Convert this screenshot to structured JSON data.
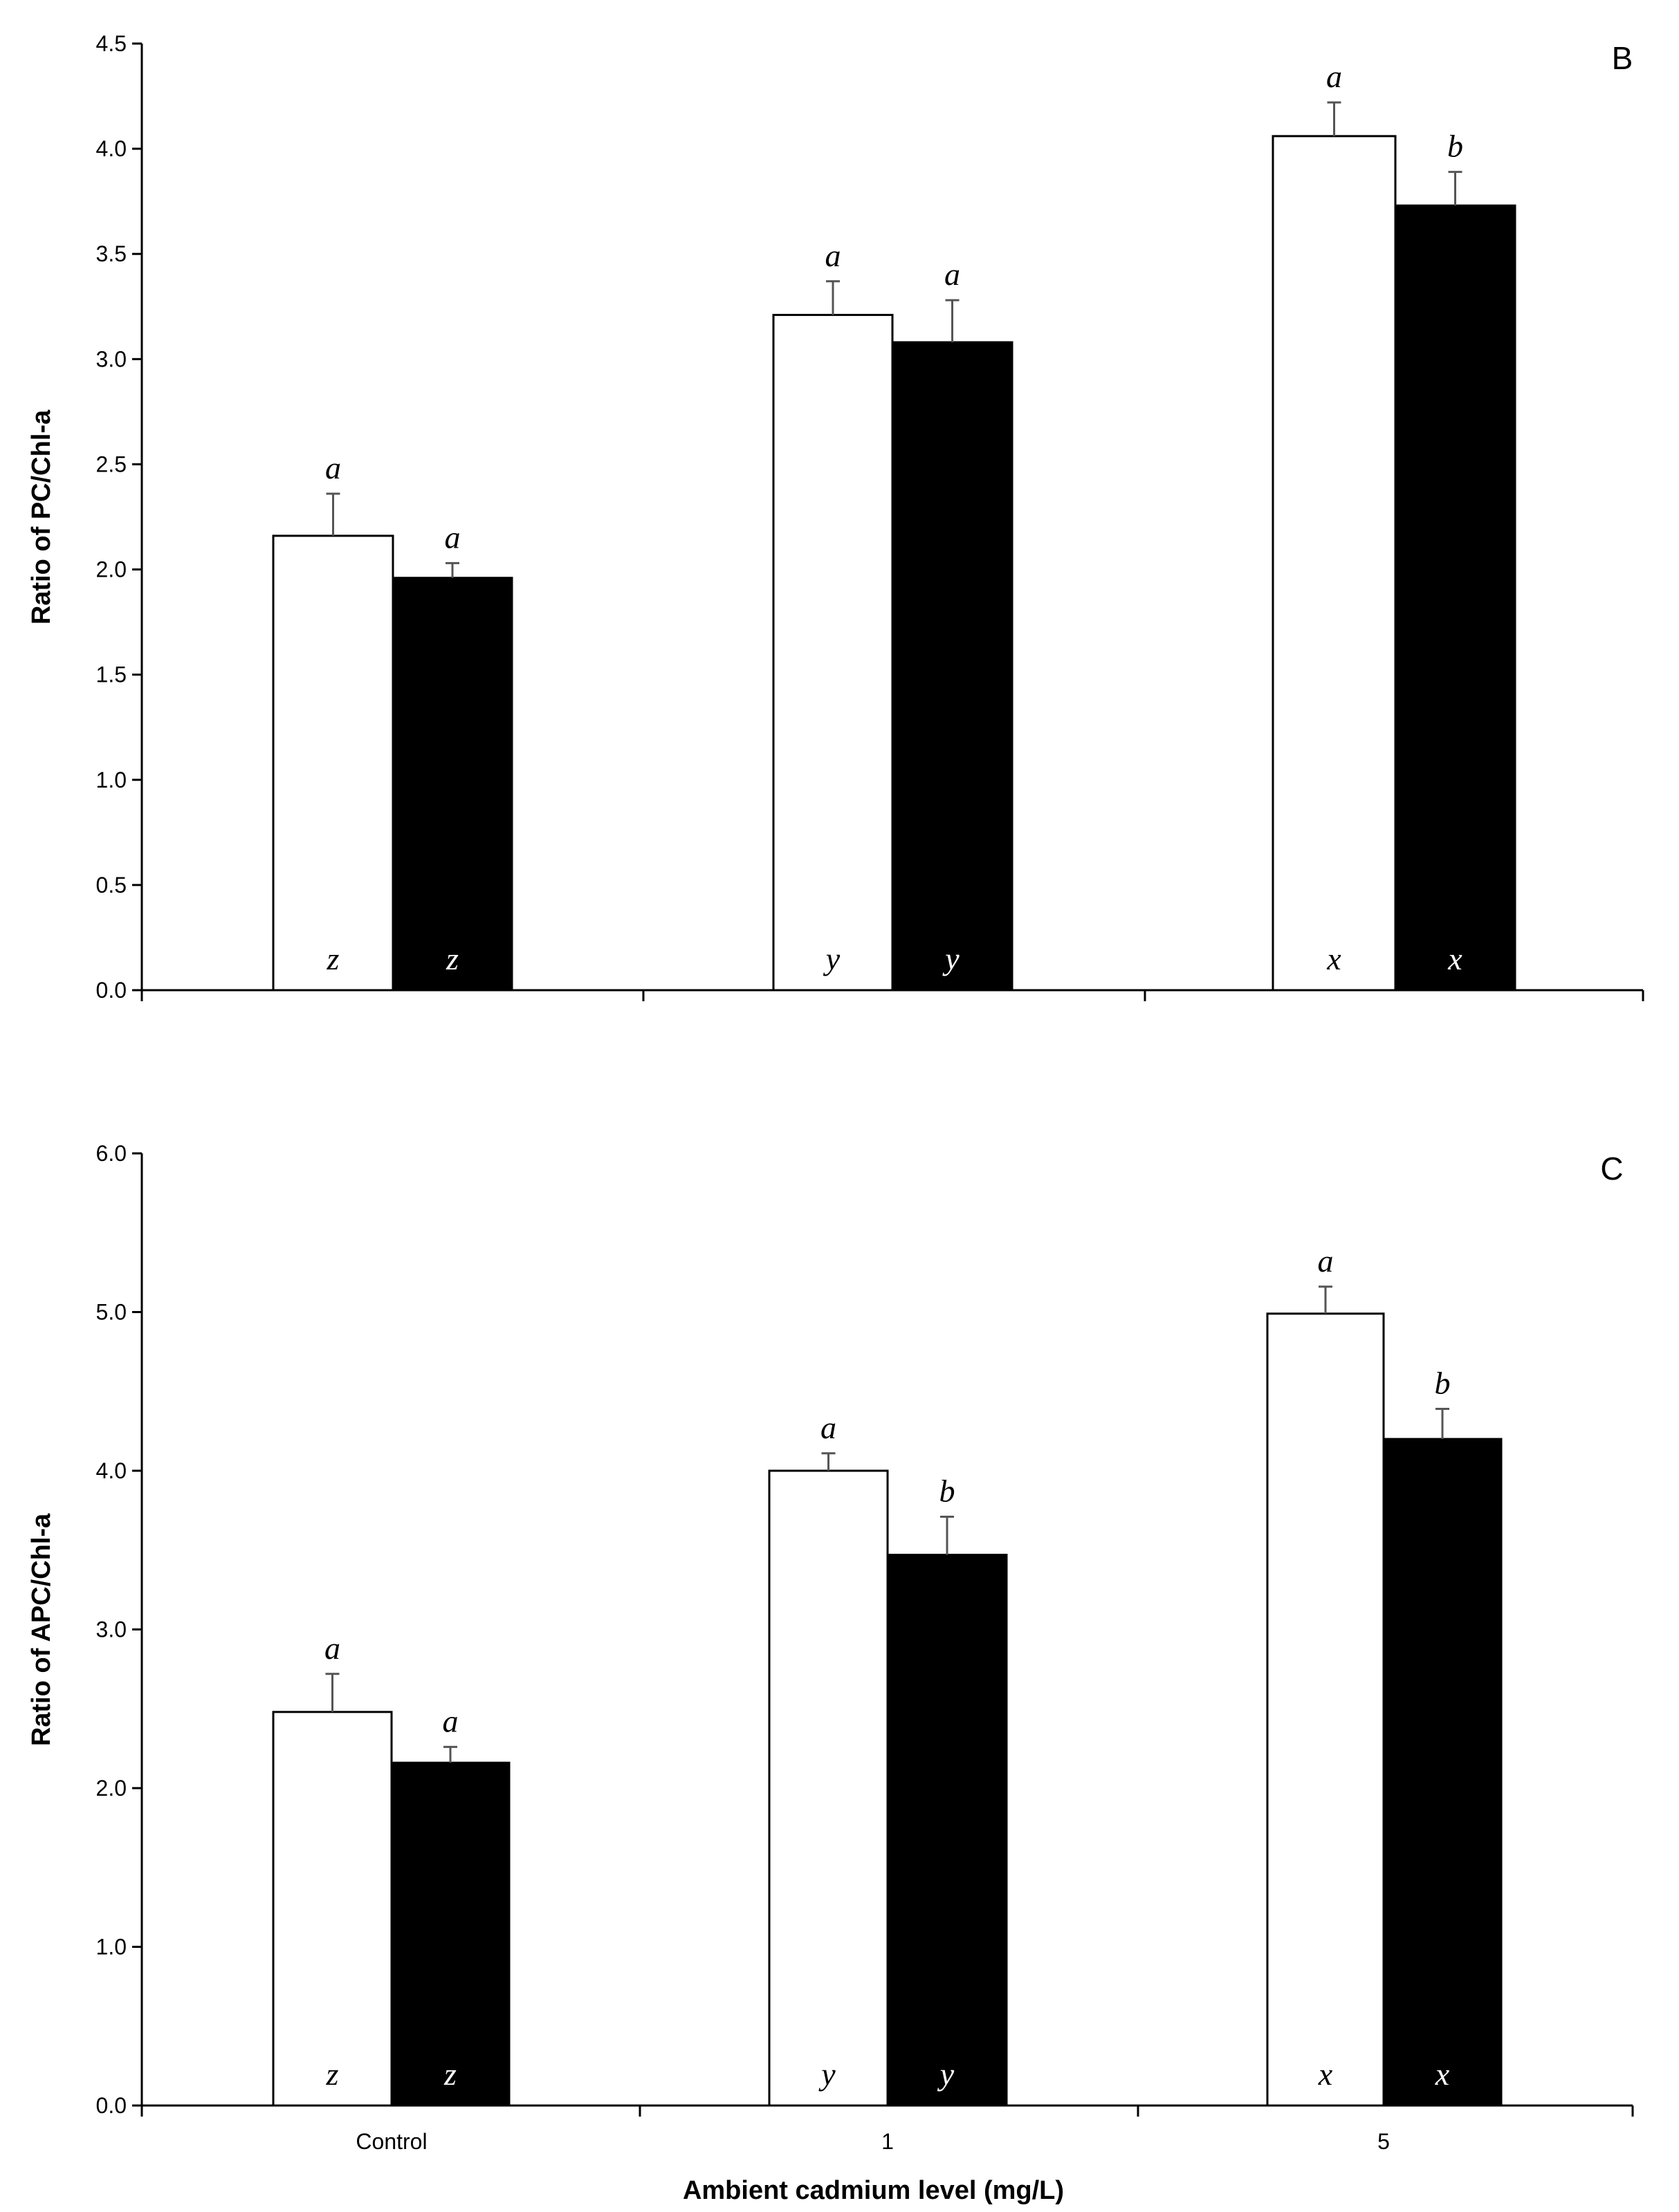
{
  "chart_data": [
    {
      "type": "bar",
      "panel_label": "B",
      "ylabel": "Ratio of PC/Chl-a",
      "xlabel": "",
      "ylim": [
        0,
        4.5
      ],
      "yticks": [
        "0.0",
        "0.5",
        "1.0",
        "1.5",
        "2.0",
        "2.5",
        "3.0",
        "3.5",
        "4.0",
        "4.5"
      ],
      "ytick_values": [
        0,
        0.5,
        1.0,
        1.5,
        2.0,
        2.5,
        3.0,
        3.5,
        4.0,
        4.5
      ],
      "categories": [
        "Control",
        "1",
        "5"
      ],
      "show_category_labels": false,
      "series": [
        {
          "name": "open",
          "color": "#ffffff",
          "values": [
            2.16,
            3.21,
            4.06
          ],
          "errors": [
            0.2,
            0.16,
            0.16
          ],
          "top_letters": [
            "a",
            "a",
            "a"
          ],
          "bottom_letters": [
            "z",
            "y",
            "x"
          ]
        },
        {
          "name": "filled",
          "color": "#000000",
          "values": [
            1.96,
            3.08,
            3.73
          ],
          "errors": [
            0.07,
            0.2,
            0.16
          ],
          "top_letters": [
            "a",
            "a",
            "b"
          ],
          "bottom_letters": [
            "z",
            "y",
            "x"
          ]
        }
      ]
    },
    {
      "type": "bar",
      "panel_label": "C",
      "ylabel": "Ratio of APC/Chl-a",
      "xlabel": "Ambient cadmium level (mg/L)",
      "ylim": [
        0,
        6.0
      ],
      "yticks": [
        "0.0",
        "1.0",
        "2.0",
        "3.0",
        "4.0",
        "5.0",
        "6.0"
      ],
      "ytick_values": [
        0,
        1.0,
        2.0,
        3.0,
        4.0,
        5.0,
        6.0
      ],
      "categories": [
        "Control",
        "1",
        "5"
      ],
      "show_category_labels": true,
      "series": [
        {
          "name": "open",
          "color": "#ffffff",
          "values": [
            2.48,
            4.0,
            4.99
          ],
          "errors": [
            0.24,
            0.11,
            0.17
          ],
          "top_letters": [
            "a",
            "a",
            "a"
          ],
          "bottom_letters": [
            "z",
            "y",
            "x"
          ]
        },
        {
          "name": "filled",
          "color": "#000000",
          "values": [
            2.16,
            3.47,
            4.2
          ],
          "errors": [
            0.1,
            0.24,
            0.19
          ],
          "top_letters": [
            "a",
            "b",
            "b"
          ],
          "bottom_letters": [
            "z",
            "y",
            "x"
          ]
        }
      ]
    }
  ]
}
